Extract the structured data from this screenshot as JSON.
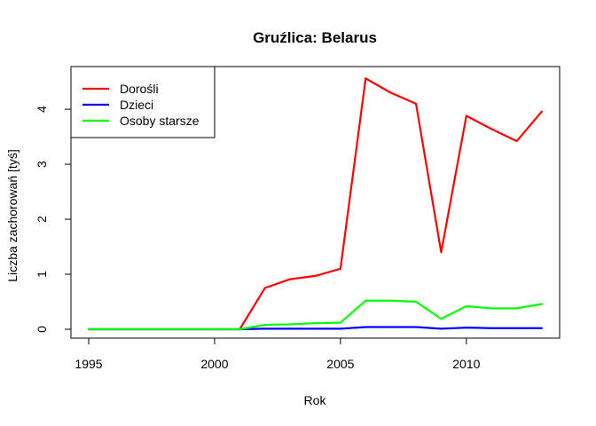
{
  "chart_data": {
    "type": "line",
    "title": "Gruźlica: Belarus",
    "xlabel": "Rok",
    "ylabel": "Liczba zachorowań [tyś]",
    "xlim": [
      1995,
      2013
    ],
    "ylim": [
      0,
      4.55
    ],
    "x_ticks": [
      "1995",
      "2000",
      "2005",
      "2010"
    ],
    "y_ticks": [
      "0",
      "1",
      "2",
      "3",
      "4"
    ],
    "grid": false,
    "legend_position": "top-left",
    "x": [
      1995,
      1996,
      1997,
      1998,
      1999,
      2000,
      2001,
      2002,
      2003,
      2004,
      2005,
      2006,
      2007,
      2008,
      2009,
      2010,
      2011,
      2012,
      2013
    ],
    "series": [
      {
        "name": "Dorośli",
        "color": "#ff0000",
        "values": [
          0,
          0,
          0,
          0,
          0,
          0,
          0,
          0.75,
          0.91,
          0.97,
          1.1,
          4.56,
          4.3,
          4.1,
          1.4,
          3.88,
          3.64,
          3.42,
          3.96
        ]
      },
      {
        "name": "Dzieci",
        "color": "#0000ff",
        "values": [
          0,
          0,
          0,
          0,
          0,
          0,
          0,
          0.01,
          0.01,
          0.01,
          0.01,
          0.04,
          0.04,
          0.04,
          0.01,
          0.03,
          0.02,
          0.02,
          0.02
        ]
      },
      {
        "name": "Osoby starsze",
        "color": "#00ff00",
        "values": [
          0,
          0,
          0,
          0,
          0,
          0,
          0,
          0.08,
          0.09,
          0.11,
          0.12,
          0.52,
          0.52,
          0.5,
          0.19,
          0.42,
          0.38,
          0.38,
          0.46
        ]
      }
    ]
  }
}
